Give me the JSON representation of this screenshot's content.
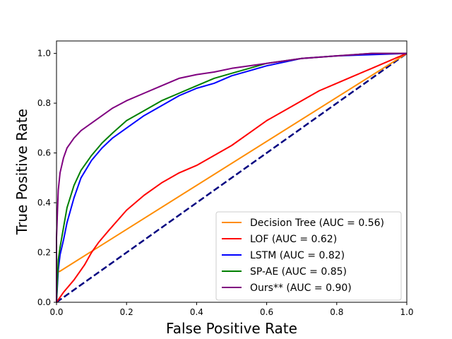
{
  "chart_data": {
    "type": "line",
    "title": "",
    "xlabel": "False Positive Rate",
    "ylabel": "True Positive Rate",
    "xlim": [
      0,
      1
    ],
    "ylim": [
      0,
      1.05
    ],
    "xticks": [
      "0.0",
      "0.2",
      "0.4",
      "0.6",
      "0.8",
      "1.0"
    ],
    "yticks": [
      "0.0",
      "0.2",
      "0.4",
      "0.6",
      "0.8",
      "1.0"
    ],
    "grid": false,
    "legend_position": "lower-right",
    "reference_line": {
      "x": [
        0,
        1
      ],
      "y": [
        0,
        1
      ],
      "color": "#000080",
      "style": "dashed"
    },
    "series": [
      {
        "name": "Decision Tree (AUC = 0.56)",
        "color": "#ff8c00",
        "x": [
          0,
          0.0,
          0.01,
          1.0
        ],
        "y": [
          0,
          0.12,
          0.125,
          1.0
        ]
      },
      {
        "name": "LOF (AUC = 0.62)",
        "color": "#ff0000",
        "x": [
          0,
          0.02,
          0.05,
          0.08,
          0.1,
          0.12,
          0.15,
          0.2,
          0.25,
          0.3,
          0.35,
          0.4,
          0.45,
          0.5,
          0.55,
          0.6,
          0.65,
          0.7,
          0.75,
          0.8,
          0.85,
          0.9,
          0.95,
          1.0
        ],
        "y": [
          0,
          0.04,
          0.09,
          0.15,
          0.2,
          0.24,
          0.29,
          0.37,
          0.43,
          0.48,
          0.52,
          0.55,
          0.59,
          0.63,
          0.68,
          0.73,
          0.77,
          0.81,
          0.85,
          0.88,
          0.91,
          0.94,
          0.97,
          1.0
        ]
      },
      {
        "name": "LSTM (AUC = 0.82)",
        "color": "#0000ff",
        "x": [
          0,
          0.005,
          0.01,
          0.02,
          0.03,
          0.05,
          0.07,
          0.1,
          0.13,
          0.16,
          0.2,
          0.25,
          0.3,
          0.35,
          0.4,
          0.45,
          0.5,
          0.55,
          0.6,
          0.7,
          0.8,
          0.9,
          1.0
        ],
        "y": [
          0,
          0.13,
          0.19,
          0.25,
          0.32,
          0.42,
          0.5,
          0.57,
          0.62,
          0.66,
          0.7,
          0.75,
          0.79,
          0.83,
          0.86,
          0.88,
          0.91,
          0.93,
          0.95,
          0.98,
          0.99,
          0.995,
          1.0
        ]
      },
      {
        "name": "SP-AE (AUC = 0.85)",
        "color": "#008000",
        "x": [
          0,
          0.005,
          0.01,
          0.02,
          0.03,
          0.05,
          0.07,
          0.1,
          0.13,
          0.16,
          0.2,
          0.25,
          0.3,
          0.35,
          0.4,
          0.45,
          0.5,
          0.55,
          0.6,
          0.65,
          0.7,
          0.8,
          0.9,
          1.0
        ],
        "y": [
          0,
          0.17,
          0.22,
          0.3,
          0.38,
          0.47,
          0.53,
          0.59,
          0.64,
          0.68,
          0.73,
          0.77,
          0.81,
          0.84,
          0.87,
          0.9,
          0.92,
          0.94,
          0.96,
          0.97,
          0.98,
          0.99,
          1.0,
          1.0
        ]
      },
      {
        "name": "Ours** (AUC = 0.90)",
        "color": "#800080",
        "x": [
          0,
          0.0,
          0.005,
          0.01,
          0.02,
          0.03,
          0.05,
          0.07,
          0.1,
          0.13,
          0.16,
          0.2,
          0.25,
          0.3,
          0.35,
          0.4,
          0.45,
          0.5,
          0.55,
          0.6,
          0.7,
          0.8,
          0.9,
          1.0
        ],
        "y": [
          0,
          0.26,
          0.45,
          0.52,
          0.58,
          0.62,
          0.66,
          0.69,
          0.72,
          0.75,
          0.78,
          0.81,
          0.84,
          0.87,
          0.9,
          0.915,
          0.925,
          0.94,
          0.95,
          0.96,
          0.98,
          0.99,
          1.0,
          1.0
        ]
      }
    ]
  }
}
